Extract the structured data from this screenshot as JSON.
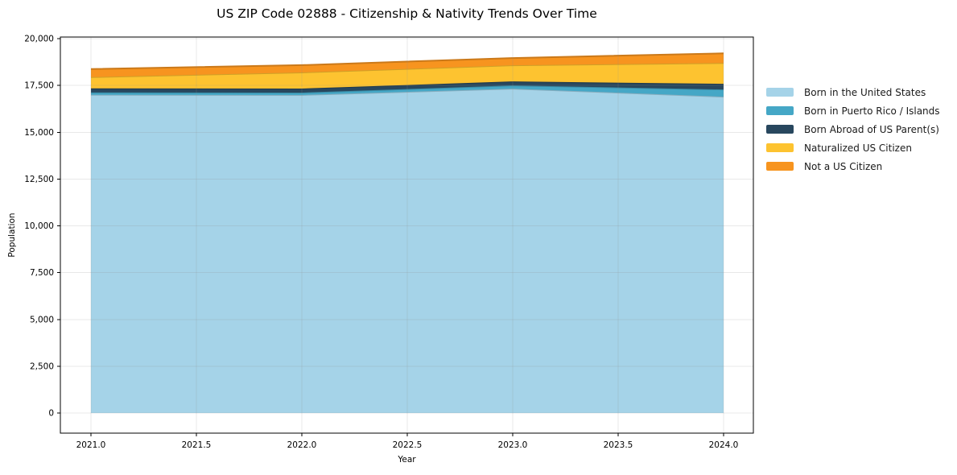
{
  "chart_data": {
    "type": "area",
    "title": "US ZIP Code 02888 - Citizenship & Nativity Trends Over Time",
    "xlabel": "Year",
    "ylabel": "Population",
    "x": [
      2021,
      2022,
      2023,
      2024
    ],
    "series": [
      {
        "name": "Born in the United States",
        "color": "#A5D3E8",
        "values": [
          17000,
          16990,
          17330,
          16900
        ]
      },
      {
        "name": "Born in Puerto Rico / Islands",
        "color": "#45A7C6",
        "values": [
          130,
          130,
          170,
          385
        ]
      },
      {
        "name": "Born Abroad of US Parent(s)",
        "color": "#28475E",
        "values": [
          215,
          215,
          215,
          300
        ]
      },
      {
        "name": "Naturalized US Citizen",
        "color": "#FDC330",
        "values": [
          600,
          860,
          860,
          1115
        ]
      },
      {
        "name": "Not a US Citizen",
        "color": "#F7941F",
        "values": [
          430,
          390,
          390,
          515
        ]
      }
    ],
    "stacked": true,
    "grid": true,
    "legend_position": "right",
    "ylim": [
      0,
      20000
    ],
    "yticks": [
      0,
      2500,
      5000,
      7500,
      10000,
      12500,
      15000,
      17500,
      20000
    ],
    "ytick_labels": [
      "0",
      "2,500",
      "5,000",
      "7,500",
      "10,000",
      "12,500",
      "15,000",
      "17,500",
      "20,000"
    ],
    "xticks": [
      2021.0,
      2021.5,
      2022.0,
      2022.5,
      2023.0,
      2023.5,
      2024.0
    ],
    "xtick_labels": [
      "2021.0",
      "2021.5",
      "2022.0",
      "2022.5",
      "2023.0",
      "2023.5",
      "2024.0"
    ]
  }
}
